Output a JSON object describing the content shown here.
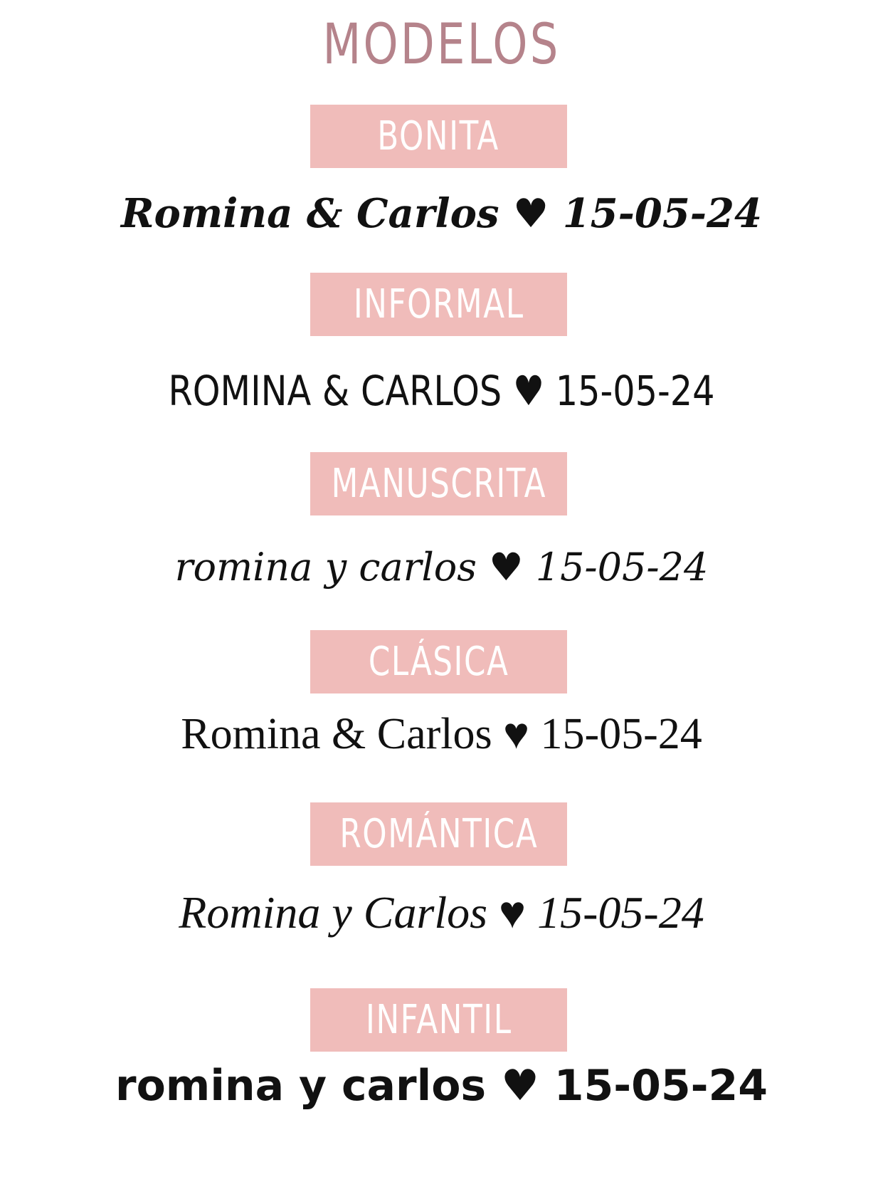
{
  "title": "MODELOS",
  "accent_color": "#f0bcba",
  "title_color": "#b5838b",
  "models": [
    {
      "label": "BONITA",
      "sample": "Romina & Carlos ♥ 15-05-24"
    },
    {
      "label": "INFORMAL",
      "sample": "ROMINA & CARLOS ♥ 15-05-24"
    },
    {
      "label": "MANUSCRITA",
      "sample": "romina y carlos ♥ 15-05-24"
    },
    {
      "label": "CLÁSICA",
      "sample": "Romina & Carlos ♥ 15-05-24"
    },
    {
      "label": "ROMÁNTICA",
      "sample": "Romina y Carlos ♥ 15-05-24"
    },
    {
      "label": "INFANTIL",
      "sample": "romina y carlos ♥ 15-05-24"
    }
  ]
}
